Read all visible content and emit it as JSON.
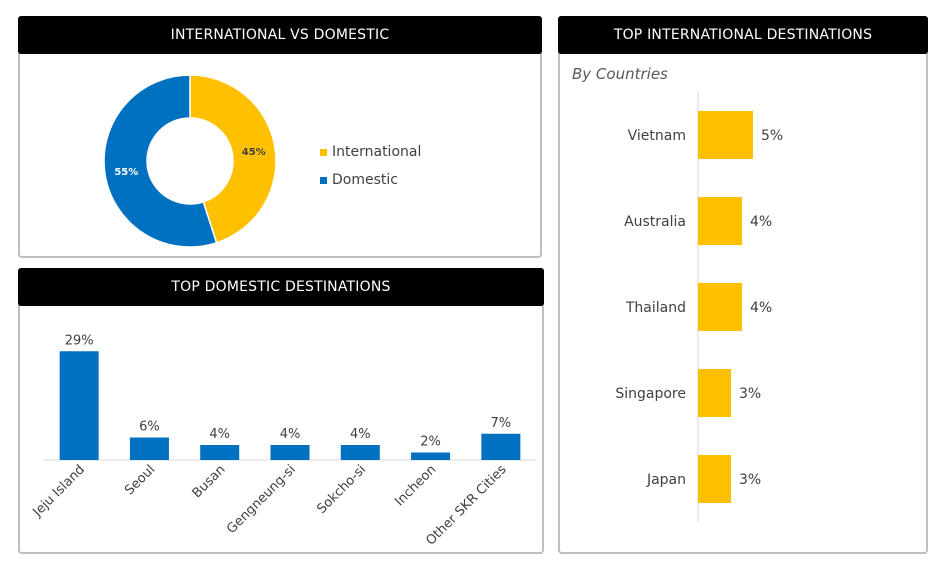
{
  "colors": {
    "international": "#FFC000",
    "domestic": "#0070C0",
    "axis": "#d9d9d9",
    "text": "#404040"
  },
  "panels": {
    "donut": {
      "title": "INTERNATIONAL VS DOMESTIC"
    },
    "domestic": {
      "title": "TOP DOMESTIC DESTINATIONS"
    },
    "international": {
      "title": "TOP INTERNATIONAL DESTINATIONS",
      "subtitle": "By Countries"
    }
  },
  "chart_data": [
    {
      "type": "pie",
      "title": "INTERNATIONAL VS DOMESTIC",
      "donut": true,
      "categories": [
        "International",
        "Domestic"
      ],
      "values": [
        45,
        55
      ],
      "labels": [
        "45%",
        "55%"
      ],
      "legend": "right"
    },
    {
      "type": "bar",
      "title": "TOP DOMESTIC DESTINATIONS",
      "orientation": "vertical",
      "categories": [
        "Jeju Island",
        "Seoul",
        "Busan",
        "Gengneung-si",
        "Sokcho-si",
        "Incheon",
        "Other SKR Cities"
      ],
      "values": [
        29,
        6,
        4,
        4,
        4,
        2,
        7
      ],
      "labels": [
        "29%",
        "6%",
        "4%",
        "4%",
        "4%",
        "2%",
        "7%"
      ],
      "ylim": [
        0,
        32
      ],
      "grid": false
    },
    {
      "type": "bar",
      "title": "TOP INTERNATIONAL DESTINATIONS",
      "subtitle": "By Countries",
      "orientation": "horizontal",
      "categories": [
        "Vietnam",
        "Australia",
        "Thailand",
        "Singapore",
        "Japan"
      ],
      "values": [
        5,
        4,
        4,
        3,
        3
      ],
      "labels": [
        "5%",
        "4%",
        "4%",
        "3%",
        "3%"
      ],
      "xlim": [
        0,
        35
      ],
      "grid": false
    }
  ]
}
